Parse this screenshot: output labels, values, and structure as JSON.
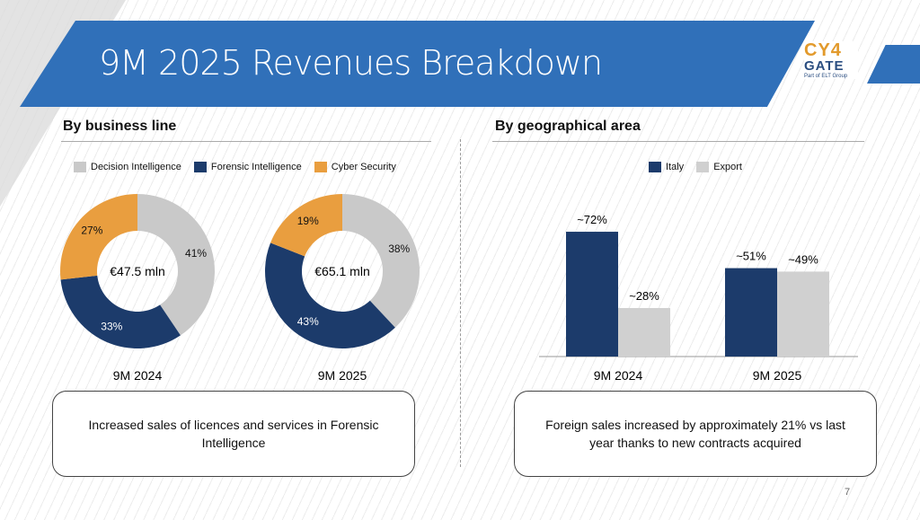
{
  "title": "9M 2025 Revenues Breakdown",
  "logo": {
    "line1": "CY4",
    "line2": "GATE",
    "line3": "Part of ELT Group"
  },
  "left": {
    "heading": "By business line",
    "note": "Increased sales of licences and services in Forensic Intelligence"
  },
  "right": {
    "heading": "By geographical area",
    "note": "Foreign sales increased by approximately 21% vs last year thanks to new contracts acquired"
  },
  "page_number": "7",
  "colors": {
    "decision": "#c9c9c9",
    "forensic": "#1c3b6b",
    "cyber": "#e99e3f",
    "banner": "#3070b9"
  },
  "chart_data": [
    {
      "type": "pie",
      "variant": "donut",
      "legend": [
        "Decision Intelligence",
        "Forensic Intelligence",
        "Cyber Security"
      ],
      "charts": [
        {
          "label": "9M 2024",
          "center": "€47.5 mln",
          "values": [
            41,
            33,
            27
          ],
          "labels": [
            "41%",
            "33%",
            "27%"
          ]
        },
        {
          "label": "9M 2025",
          "center": "€65.1 mln",
          "values": [
            38,
            43,
            19
          ],
          "labels": [
            "38%",
            "43%",
            "19%"
          ]
        }
      ]
    },
    {
      "type": "bar",
      "categories": [
        "9M 2024",
        "9M 2025"
      ],
      "legend": "top",
      "series": [
        {
          "name": "Italy",
          "values": [
            72,
            51
          ],
          "labels": [
            "~72%",
            "~51%"
          ]
        },
        {
          "name": "Export",
          "values": [
            28,
            49
          ],
          "labels": [
            "~28%",
            "~49%"
          ]
        }
      ],
      "ylim": [
        0,
        100
      ]
    }
  ]
}
